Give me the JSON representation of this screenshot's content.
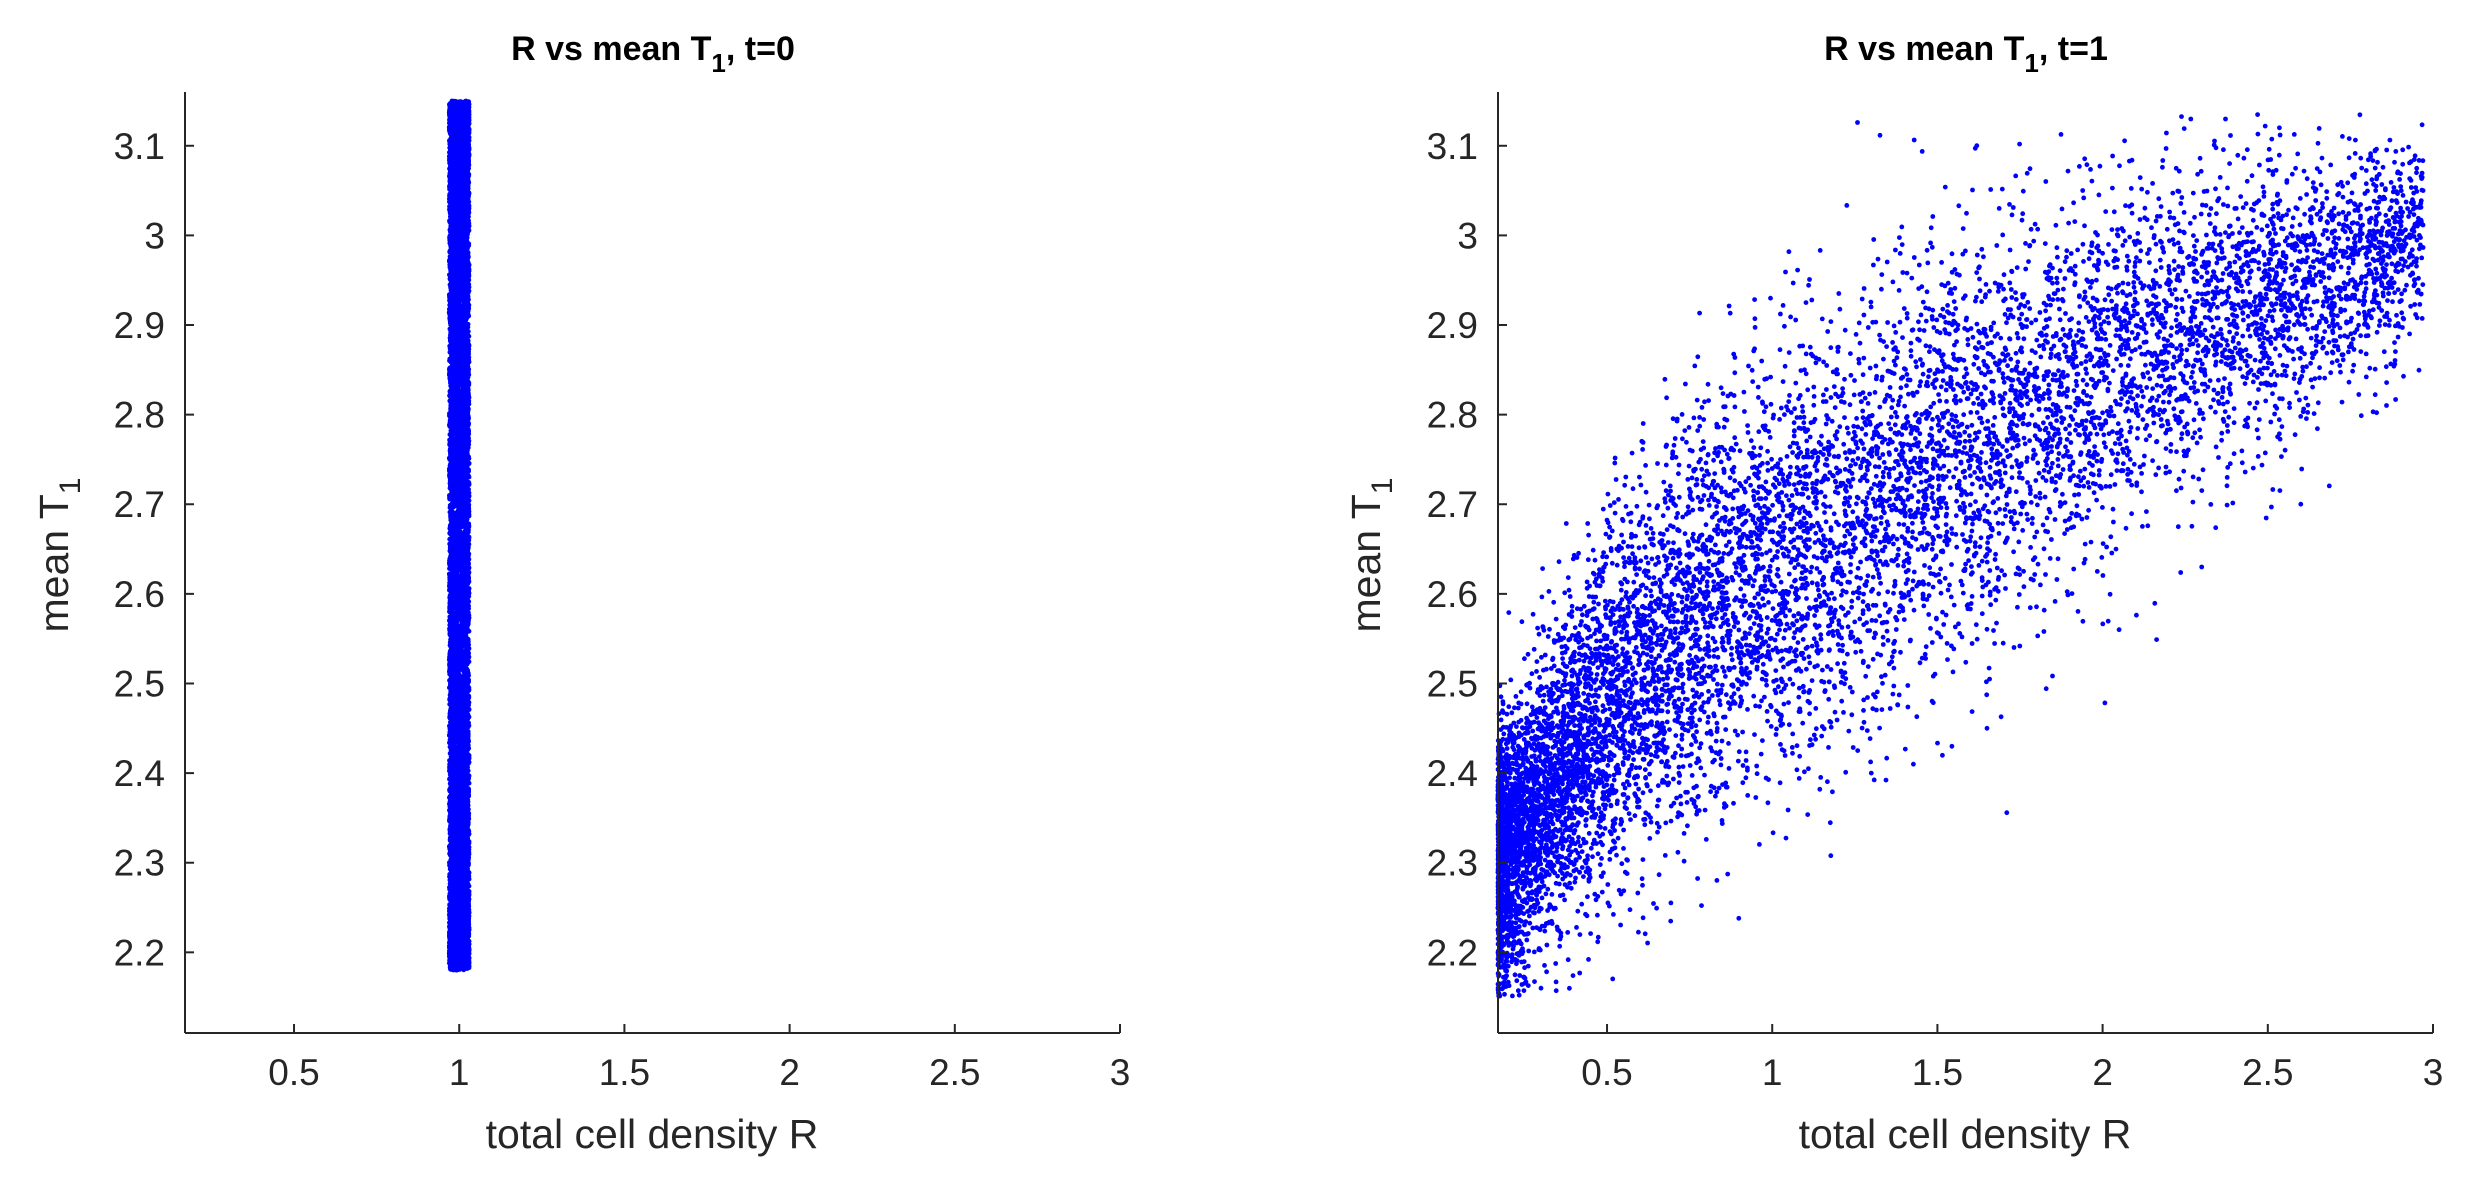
{
  "figure": {
    "background": "#ffffff",
    "point_color": "#0000ff",
    "axis_color": "#262626"
  },
  "chart_data": [
    {
      "type": "scatter",
      "title": "R vs mean T1, t=0",
      "title_parts": {
        "main": "R vs mean T",
        "sub": "1",
        "tail": ", t=0"
      },
      "xlabel": "total cell density R",
      "ylabel": "mean T1",
      "ylabel_parts": {
        "main": "mean T",
        "sub": "1"
      },
      "xlim": [
        0.17,
        3.0
      ],
      "ylim": [
        2.11,
        3.16
      ],
      "xticks": [
        0.5,
        1,
        1.5,
        2,
        2.5,
        3
      ],
      "xtick_labels": [
        "0.5",
        "1",
        "1.5",
        "2",
        "2.5",
        "3"
      ],
      "yticks": [
        2.2,
        2.3,
        2.4,
        2.5,
        2.6,
        2.7,
        2.8,
        2.9,
        3.0,
        3.1
      ],
      "ytick_labels": [
        "2.2",
        "2.3",
        "2.4",
        "2.5",
        "2.6",
        "2.7",
        "2.8",
        "2.9",
        "3",
        "3.1"
      ],
      "grid": false,
      "legend": "none",
      "series": [
        {
          "color": "#0000ff",
          "distribution": {
            "kind": "vertical_band",
            "x_center": 1.0,
            "x_halfwidth": 0.03,
            "y_min": 2.18,
            "y_max": 3.15,
            "n": 10000
          },
          "points": [
            {
              "x": 0.98,
              "y": 2.19
            },
            {
              "x": 1.01,
              "y": 2.21
            },
            {
              "x": 0.99,
              "y": 2.24
            },
            {
              "x": 1.0,
              "y": 2.3
            },
            {
              "x": 1.02,
              "y": 2.4
            },
            {
              "x": 0.98,
              "y": 2.5
            },
            {
              "x": 1.0,
              "y": 2.6
            },
            {
              "x": 1.01,
              "y": 2.7
            },
            {
              "x": 0.99,
              "y": 2.8
            },
            {
              "x": 1.0,
              "y": 2.9
            },
            {
              "x": 1.02,
              "y": 3.0
            },
            {
              "x": 0.99,
              "y": 3.08
            },
            {
              "x": 1.01,
              "y": 3.12
            },
            {
              "x": 1.02,
              "y": 3.15
            }
          ]
        }
      ]
    },
    {
      "type": "scatter",
      "title": "R vs mean T1, t=1",
      "title_parts": {
        "main": "R vs mean T",
        "sub": "1",
        "tail": ", t=1"
      },
      "xlabel": "total cell density R",
      "ylabel": "mean T1",
      "ylabel_parts": {
        "main": "mean T",
        "sub": "1"
      },
      "xlim": [
        0.17,
        3.0
      ],
      "ylim": [
        2.11,
        3.16
      ],
      "xticks": [
        0.5,
        1,
        1.5,
        2,
        2.5,
        3
      ],
      "xtick_labels": [
        "0.5",
        "1",
        "1.5",
        "2",
        "2.5",
        "3"
      ],
      "yticks": [
        2.2,
        2.3,
        2.4,
        2.5,
        2.6,
        2.7,
        2.8,
        2.9,
        3.0,
        3.1
      ],
      "ytick_labels": [
        "2.2",
        "2.3",
        "2.4",
        "2.5",
        "2.6",
        "2.7",
        "2.8",
        "2.9",
        "3",
        "3.1"
      ],
      "grid": false,
      "legend": "none",
      "series": [
        {
          "color": "#0000ff",
          "distribution": {
            "kind": "concave_trend",
            "x_min": 0.17,
            "x_max": 2.97,
            "trend": [
              [
                0.17,
                2.3
              ],
              [
                0.3,
                2.37
              ],
              [
                0.5,
                2.47
              ],
              [
                0.75,
                2.57
              ],
              [
                1.0,
                2.64
              ],
              [
                1.5,
                2.74
              ],
              [
                2.0,
                2.84
              ],
              [
                2.5,
                2.93
              ],
              [
                2.97,
                3.0
              ]
            ],
            "spread": [
              [
                0.17,
                0.07
              ],
              [
                0.5,
                0.1
              ],
              [
                1.0,
                0.12
              ],
              [
                1.5,
                0.12
              ],
              [
                2.0,
                0.1
              ],
              [
                2.5,
                0.08
              ],
              [
                2.97,
                0.05
              ]
            ],
            "n": 10000
          },
          "points": [
            {
              "x": 0.3,
              "y": 2.16
            },
            {
              "x": 0.2,
              "y": 2.36
            },
            {
              "x": 0.25,
              "y": 2.22
            },
            {
              "x": 0.4,
              "y": 2.35
            },
            {
              "x": 0.5,
              "y": 2.55
            },
            {
              "x": 0.6,
              "y": 2.68
            },
            {
              "x": 0.8,
              "y": 2.72
            },
            {
              "x": 1.0,
              "y": 2.66
            },
            {
              "x": 1.2,
              "y": 2.82
            },
            {
              "x": 1.3,
              "y": 2.4
            },
            {
              "x": 1.5,
              "y": 2.85
            },
            {
              "x": 1.65,
              "y": 2.45
            },
            {
              "x": 1.7,
              "y": 2.94
            },
            {
              "x": 2.0,
              "y": 2.98
            },
            {
              "x": 2.05,
              "y": 2.56
            },
            {
              "x": 2.3,
              "y": 2.63
            },
            {
              "x": 2.4,
              "y": 3.03
            },
            {
              "x": 2.6,
              "y": 2.7
            },
            {
              "x": 2.8,
              "y": 2.9
            },
            {
              "x": 2.95,
              "y": 3.07
            },
            {
              "x": 2.97,
              "y": 3.05
            }
          ]
        }
      ]
    }
  ]
}
